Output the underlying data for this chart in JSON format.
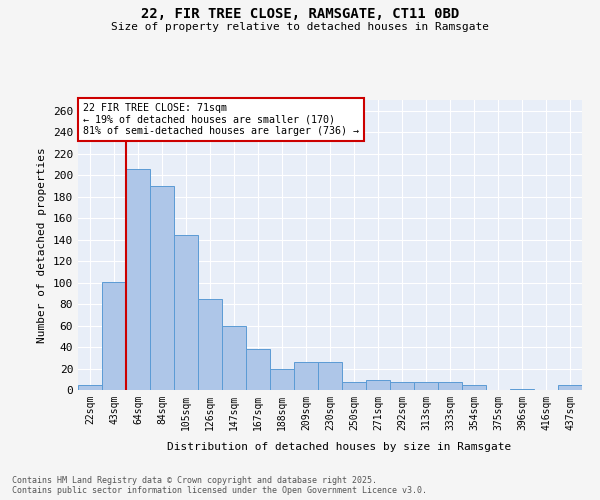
{
  "title_line1": "22, FIR TREE CLOSE, RAMSGATE, CT11 0BD",
  "title_line2": "Size of property relative to detached houses in Ramsgate",
  "xlabel": "Distribution of detached houses by size in Ramsgate",
  "ylabel": "Number of detached properties",
  "categories": [
    "22sqm",
    "43sqm",
    "64sqm",
    "84sqm",
    "105sqm",
    "126sqm",
    "147sqm",
    "167sqm",
    "188sqm",
    "209sqm",
    "230sqm",
    "250sqm",
    "271sqm",
    "292sqm",
    "313sqm",
    "333sqm",
    "354sqm",
    "375sqm",
    "396sqm",
    "416sqm",
    "437sqm"
  ],
  "values": [
    5,
    101,
    206,
    190,
    144,
    85,
    60,
    38,
    20,
    26,
    26,
    7,
    9,
    7,
    7,
    7,
    5,
    0,
    1,
    0,
    5
  ],
  "bar_color": "#aec6e8",
  "bar_edge_color": "#5b9bd5",
  "vline_x_index": 2,
  "vline_color": "#cc0000",
  "annotation_text": "22 FIR TREE CLOSE: 71sqm\n← 19% of detached houses are smaller (170)\n81% of semi-detached houses are larger (736) →",
  "annotation_box_color": "#ffffff",
  "annotation_box_edge": "#cc0000",
  "ylim": [
    0,
    270
  ],
  "yticks": [
    0,
    20,
    40,
    60,
    80,
    100,
    120,
    140,
    160,
    180,
    200,
    220,
    240,
    260
  ],
  "plot_bg_color": "#e8eef8",
  "fig_bg_color": "#f5f5f5",
  "footer_line1": "Contains HM Land Registry data © Crown copyright and database right 2025.",
  "footer_line2": "Contains public sector information licensed under the Open Government Licence v3.0."
}
